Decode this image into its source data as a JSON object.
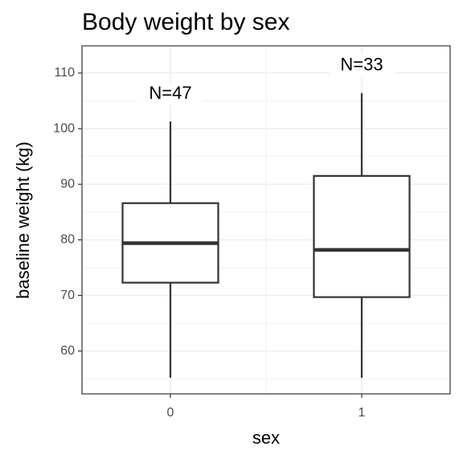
{
  "chart_data": {
    "type": "box",
    "title": "Body weight by sex",
    "x_label": "sex",
    "y_label": "baseline weight (kg)",
    "categories": [
      "0",
      "1"
    ],
    "boxes": [
      {
        "min": 55.2,
        "q1": 72.3,
        "median": 79.4,
        "q3": 86.6,
        "max": 101.3
      },
      {
        "min": 55.2,
        "q1": 69.7,
        "median": 78.2,
        "q3": 91.5,
        "max": 106.4
      }
    ],
    "annotations": [
      "N=47",
      "N=33"
    ],
    "color": "#333333",
    "fill": "#ffffff",
    "ylim": [
      52.3,
      114.9
    ],
    "yticks": [
      60,
      70,
      80,
      90,
      100,
      110
    ],
    "y_minor_ticks": [
      55,
      65,
      75,
      85,
      95,
      105
    ],
    "grid": true
  }
}
